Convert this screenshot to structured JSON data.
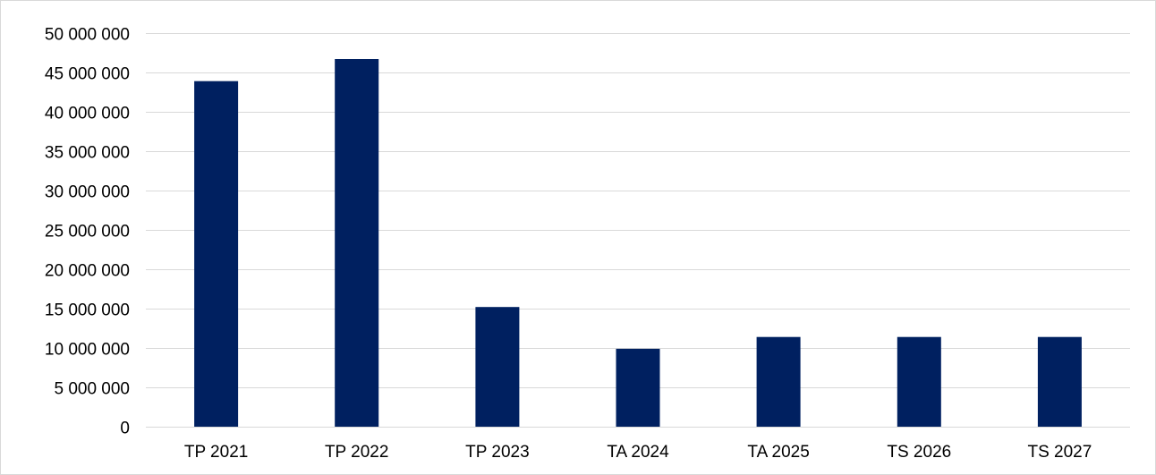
{
  "chart_data": {
    "type": "bar",
    "title": "",
    "xlabel": "",
    "ylabel": "",
    "categories": [
      "TP 2021",
      "TP 2022",
      "TP 2023",
      "TA 2024",
      "TA 2025",
      "TS 2026",
      "TS 2027"
    ],
    "values": [
      43900000,
      46700000,
      15200000,
      9900000,
      11400000,
      11400000,
      11400000
    ],
    "ylim": [
      0,
      50000000
    ],
    "yticks": [
      0,
      5000000,
      10000000,
      15000000,
      20000000,
      25000000,
      30000000,
      35000000,
      40000000,
      45000000,
      50000000
    ],
    "ytick_labels": [
      "0",
      "5 000 000",
      "10 000 000",
      "15 000 000",
      "20 000 000",
      "25 000 000",
      "30 000 000",
      "35 000 000",
      "40 000 000",
      "45 000 000",
      "50 000 000"
    ],
    "grid": true,
    "legend": "none",
    "colors": {
      "bar": "#002060",
      "grid": "#d9d9d9",
      "border": "#d9d9d9",
      "text": "#000000"
    }
  }
}
